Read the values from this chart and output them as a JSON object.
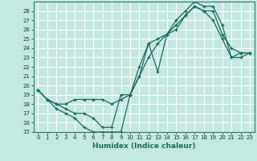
{
  "xlabel": "Humidex (Indice chaleur)",
  "background_color": "#c5e8e0",
  "grid_color": "#b0d8d0",
  "line_color": "#1a6b5a",
  "xlim": [
    -0.5,
    23.5
  ],
  "ylim": [
    15,
    29
  ],
  "xticks": [
    0,
    1,
    2,
    3,
    4,
    5,
    6,
    7,
    8,
    9,
    10,
    11,
    12,
    13,
    14,
    15,
    16,
    17,
    18,
    19,
    20,
    21,
    22,
    23
  ],
  "yticks": [
    15,
    16,
    17,
    18,
    19,
    20,
    21,
    22,
    23,
    24,
    25,
    26,
    27,
    28
  ],
  "line1_x": [
    0,
    1,
    2,
    3,
    4,
    5,
    6,
    7,
    8,
    9,
    10,
    11,
    12,
    13,
    14,
    15,
    16,
    17,
    18,
    19,
    20,
    21,
    22,
    23
  ],
  "line1_y": [
    19.5,
    18.5,
    17.5,
    17.0,
    16.5,
    15.5,
    15.0,
    15.0,
    15.0,
    15.0,
    19.0,
    21.0,
    24.5,
    21.5,
    25.5,
    26.0,
    27.5,
    28.5,
    28.0,
    28.0,
    25.5,
    24.0,
    23.5,
    23.5
  ],
  "line2_x": [
    0,
    1,
    2,
    3,
    4,
    5,
    6,
    7,
    8,
    9,
    10,
    11,
    12,
    13,
    14,
    15,
    16,
    17,
    18,
    19,
    20,
    21,
    22,
    23
  ],
  "line2_y": [
    19.5,
    18.5,
    18.0,
    18.0,
    18.5,
    18.5,
    18.5,
    18.5,
    18.0,
    18.5,
    19.0,
    22.0,
    24.5,
    25.0,
    25.5,
    26.5,
    27.5,
    28.5,
    28.0,
    27.0,
    25.0,
    23.0,
    23.5,
    23.5
  ],
  "line3_x": [
    0,
    1,
    2,
    3,
    4,
    5,
    6,
    7,
    8,
    9,
    10,
    11,
    12,
    13,
    14,
    15,
    16,
    17,
    18,
    19,
    20,
    21,
    22,
    23
  ],
  "line3_y": [
    19.5,
    18.5,
    18.0,
    17.5,
    17.0,
    17.0,
    16.5,
    15.5,
    15.5,
    19.0,
    19.0,
    21.0,
    23.0,
    24.5,
    25.5,
    27.0,
    28.0,
    29.0,
    28.5,
    28.5,
    26.5,
    23.0,
    23.0,
    23.5
  ]
}
